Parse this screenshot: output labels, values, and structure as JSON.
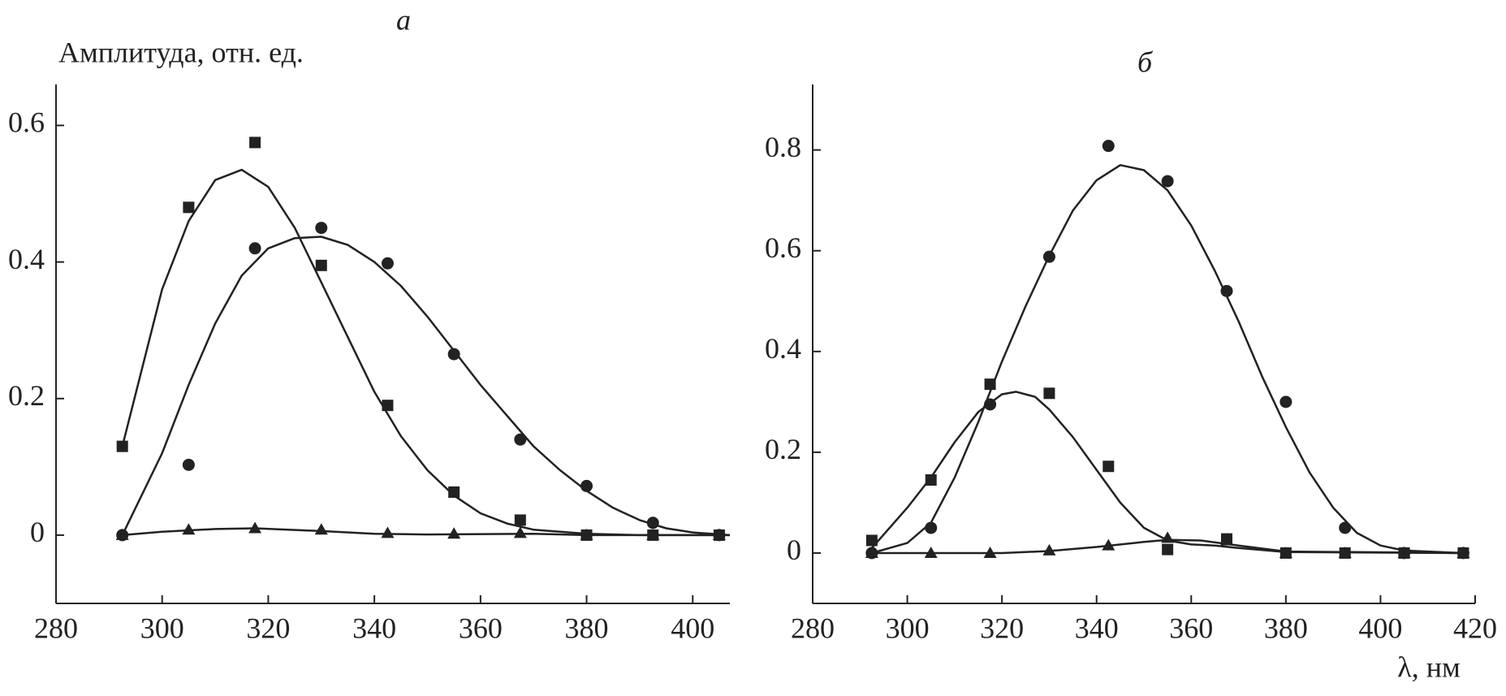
{
  "chart_data": [
    {
      "type": "scatter",
      "title": "а",
      "y_label": "Амплитуда, отн. ед.",
      "xlim": [
        280,
        407
      ],
      "ylim": [
        -0.1,
        0.66
      ],
      "xticks": [
        280,
        300,
        320,
        340,
        360,
        380,
        400
      ],
      "yticks": [
        0,
        0.2,
        0.4,
        0.6
      ],
      "color": "#222222",
      "x": [
        292.5,
        305,
        317.5,
        330,
        342.5,
        355,
        367.5,
        380,
        392.5,
        405
      ],
      "series": [
        {
          "marker": "square",
          "values": [
            0.13,
            0.48,
            0.575,
            0.395,
            0.19,
            0.063,
            0.022,
            0,
            0,
            0
          ]
        },
        {
          "marker": "circle",
          "values": [
            0,
            0.103,
            0.42,
            0.45,
            0.398,
            0.265,
            0.14,
            0.072,
            0.018,
            0
          ]
        },
        {
          "marker": "triangle",
          "values": [
            0,
            0.008,
            0.01,
            0.008,
            0.003,
            0.002,
            0.003,
            0,
            0,
            0
          ]
        }
      ],
      "fits": [
        {
          "x": [
            292.5,
            300,
            305,
            310,
            315,
            320,
            325,
            330,
            335,
            340,
            345,
            350,
            355,
            360,
            365,
            370,
            380,
            390,
            407
          ],
          "values": [
            0.13,
            0.36,
            0.46,
            0.52,
            0.535,
            0.51,
            0.45,
            0.37,
            0.29,
            0.21,
            0.145,
            0.095,
            0.058,
            0.032,
            0.017,
            0.008,
            0.002,
            0,
            0
          ]
        },
        {
          "x": [
            292.5,
            300,
            305,
            310,
            315,
            320,
            325,
            330,
            335,
            340,
            345,
            350,
            355,
            360,
            365,
            370,
            375,
            380,
            385,
            390,
            395,
            400,
            407
          ],
          "values": [
            0,
            0.12,
            0.22,
            0.31,
            0.38,
            0.42,
            0.435,
            0.437,
            0.425,
            0.4,
            0.365,
            0.32,
            0.27,
            0.22,
            0.175,
            0.13,
            0.095,
            0.065,
            0.04,
            0.022,
            0.01,
            0.004,
            0
          ]
        },
        {
          "x": [
            292.5,
            300,
            310,
            317.5,
            330,
            340,
            350,
            370,
            380,
            407
          ],
          "values": [
            0,
            0.005,
            0.009,
            0.01,
            0.006,
            0.002,
            0.001,
            0.002,
            0,
            0
          ]
        }
      ]
    },
    {
      "type": "scatter",
      "title": "б",
      "x_label": "λ, нм",
      "xlim": [
        280,
        420
      ],
      "ylim": [
        -0.1,
        0.93
      ],
      "xticks": [
        280,
        300,
        320,
        340,
        360,
        380,
        400,
        420
      ],
      "yticks": [
        0,
        0.2,
        0.4,
        0.6,
        0.8
      ],
      "color": "#222222",
      "x": [
        292.5,
        305,
        317.5,
        330,
        342.5,
        355,
        367.5,
        380,
        392.5,
        405,
        417.5
      ],
      "series": [
        {
          "marker": "square",
          "values": [
            0.025,
            0.145,
            0.335,
            0.317,
            0.172,
            0.007,
            0.028,
            0,
            0,
            0,
            0
          ]
        },
        {
          "marker": "circle",
          "values": [
            0,
            0.05,
            0.295,
            0.588,
            0.808,
            0.738,
            0.52,
            0.3,
            0.05,
            0,
            0
          ]
        },
        {
          "marker": "triangle",
          "values": [
            0,
            0,
            0,
            0.005,
            0.015,
            0.03,
            0.025,
            0,
            0,
            0,
            0
          ]
        }
      ],
      "fits": [
        {
          "x": [
            292.5,
            300,
            305,
            310,
            315,
            320,
            323,
            327,
            330,
            335,
            340,
            345,
            350,
            355,
            360,
            365,
            370,
            380,
            417.5
          ],
          "values": [
            0.01,
            0.09,
            0.15,
            0.22,
            0.28,
            0.315,
            0.32,
            0.31,
            0.285,
            0.23,
            0.165,
            0.1,
            0.05,
            0.025,
            0.017,
            0.015,
            0.01,
            0.002,
            0
          ]
        },
        {
          "x": [
            292.5,
            300,
            305,
            310,
            315,
            320,
            325,
            330,
            335,
            340,
            345,
            350,
            355,
            360,
            365,
            370,
            375,
            380,
            385,
            390,
            395,
            400,
            405,
            417.5
          ],
          "values": [
            0,
            0.02,
            0.06,
            0.15,
            0.26,
            0.38,
            0.49,
            0.59,
            0.68,
            0.74,
            0.77,
            0.76,
            0.72,
            0.65,
            0.56,
            0.46,
            0.35,
            0.25,
            0.16,
            0.09,
            0.04,
            0.015,
            0.005,
            0
          ]
        },
        {
          "x": [
            292.5,
            320,
            330,
            340,
            350,
            355,
            362,
            370,
            380,
            417.5
          ],
          "values": [
            0,
            0,
            0.004,
            0.012,
            0.022,
            0.026,
            0.025,
            0.015,
            0.003,
            0
          ]
        }
      ]
    }
  ]
}
